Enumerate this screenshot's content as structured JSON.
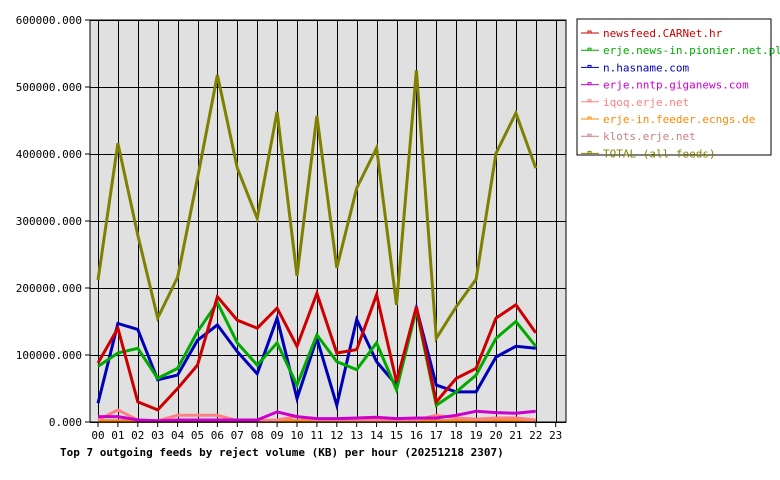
{
  "chart_data": {
    "type": "line",
    "title": "Top 7 outgoing feeds by reject volume (KB) per hour (20251218 2307)",
    "xlabel": "",
    "ylabel": "",
    "ylim": [
      0,
      600000
    ],
    "grid": true,
    "legend_position": "right",
    "y_ticks": [
      "0.000",
      "100000.000",
      "200000.000",
      "300000.000",
      "400000.000",
      "500000.000",
      "600000.000"
    ],
    "categories": [
      "00",
      "01",
      "02",
      "03",
      "04",
      "05",
      "06",
      "07",
      "08",
      "09",
      "10",
      "11",
      "12",
      "13",
      "14",
      "15",
      "16",
      "17",
      "18",
      "19",
      "20",
      "21",
      "22",
      "23"
    ],
    "series": [
      {
        "name": "newsfeed.CARNet.hr",
        "color": "#cc0000",
        "values": [
          88000,
          140000,
          30000,
          18000,
          50000,
          85000,
          187000,
          152000,
          140000,
          170000,
          113000,
          192000,
          103000,
          108000,
          190000,
          60000,
          172000,
          30000,
          65000,
          80000,
          155000,
          175000,
          133000
        ]
      },
      {
        "name": "erje.news-in.pionier.net.pl",
        "color": "#00aa00",
        "values": [
          83000,
          103000,
          110000,
          65000,
          80000,
          135000,
          178000,
          118000,
          85000,
          118000,
          55000,
          130000,
          90000,
          78000,
          118000,
          48000,
          168000,
          25000,
          45000,
          70000,
          125000,
          150000,
          113000
        ]
      },
      {
        "name": "n.hasname.com",
        "color": "#0000bb",
        "values": [
          28000,
          147000,
          138000,
          63000,
          70000,
          122000,
          145000,
          105000,
          72000,
          155000,
          35000,
          125000,
          25000,
          153000,
          90000,
          55000,
          170000,
          55000,
          45000,
          45000,
          97000,
          113000,
          110000
        ]
      },
      {
        "name": "erje.nntp.giganews.com",
        "color": "#cc00cc",
        "values": [
          8000,
          8000,
          3000,
          2000,
          3000,
          3000,
          3000,
          3000,
          3000,
          15000,
          8000,
          5000,
          5000,
          6000,
          7000,
          5000,
          6000,
          6000,
          10000,
          16000,
          14000,
          13000,
          16000
        ]
      },
      {
        "name": "iqoq.erje.net",
        "color": "#ff8080",
        "values": [
          3000,
          18000,
          3000,
          2000,
          10000,
          10000,
          10000,
          2000,
          2000,
          3000,
          8000,
          3000,
          3000,
          3000,
          3000,
          3000,
          3000,
          10000,
          6000,
          4000,
          6000,
          6000,
          3000
        ]
      },
      {
        "name": "erje-in.feeder.ecngs.de",
        "color": "#ff8800",
        "values": [
          1000,
          1000,
          1000,
          1000,
          1000,
          1000,
          1000,
          1000,
          1000,
          1000,
          1000,
          1000,
          1000,
          1000,
          1000,
          1000,
          1000,
          1000,
          1000,
          1000,
          3000,
          3000,
          3000
        ]
      },
      {
        "name": "klots.erje.net",
        "color": "#cc8080",
        "values": [
          2000,
          2000,
          2000,
          2000,
          2000,
          2000,
          2000,
          2000,
          2000,
          2000,
          2000,
          2000,
          2000,
          2000,
          2000,
          2000,
          2000,
          2000,
          2000,
          2000,
          2000,
          2000,
          2000
        ]
      },
      {
        "name": "TOTAL (all feeds)",
        "color": "#808000",
        "values": [
          212000,
          416000,
          279000,
          155000,
          216000,
          364000,
          518000,
          379000,
          304000,
          463000,
          218000,
          457000,
          230000,
          349000,
          409000,
          175000,
          525000,
          125000,
          172000,
          213000,
          401000,
          461000,
          379000
        ]
      }
    ]
  }
}
